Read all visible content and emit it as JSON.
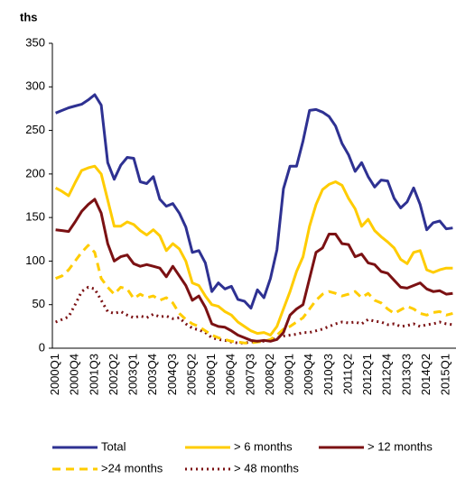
{
  "chart_data": {
    "type": "line",
    "unit_label": "ths",
    "categories": [
      "2000Q1",
      null,
      null,
      "2000Q4",
      null,
      null,
      "2001Q3",
      null,
      null,
      "2002Q2",
      null,
      null,
      "2003Q1",
      null,
      null,
      "2003Q4",
      null,
      null,
      "2004Q3",
      null,
      null,
      "2005Q2",
      null,
      null,
      "2006Q1",
      null,
      null,
      "2006Q4",
      null,
      null,
      "2007Q3",
      null,
      null,
      "2008Q2",
      null,
      null,
      "2009Q1",
      null,
      null,
      "2009Q4",
      null,
      null,
      "2010Q3",
      null,
      null,
      "2011Q2",
      null,
      null,
      "2012Q1",
      null,
      null,
      "2012Q4",
      null,
      null,
      "2013Q3",
      null,
      null,
      "2014Q2",
      null,
      null,
      "2015Q1",
      null
    ],
    "ylim": [
      0,
      350
    ],
    "yticks": [
      0,
      50,
      100,
      150,
      200,
      250,
      300,
      350
    ],
    "series": [
      {
        "name": "Total",
        "color": "#2e3192",
        "style": "solid",
        "values": [
          270,
          273,
          276,
          278,
          280,
          285,
          291,
          279,
          213,
          194,
          210,
          219,
          218,
          191,
          189,
          197,
          171,
          163,
          166,
          155,
          139,
          110,
          112,
          98,
          65,
          75,
          68,
          71,
          56,
          54,
          46,
          67,
          58,
          80,
          113,
          183,
          209,
          209,
          238,
          273,
          274,
          271,
          266,
          255,
          235,
          222,
          203,
          213,
          197,
          185,
          193,
          192,
          172,
          161,
          168,
          184,
          165,
          136,
          144,
          146,
          137,
          138
        ]
      },
      {
        "name": "> 6 months",
        "color": "#ffcc00",
        "style": "solid",
        "values": [
          184,
          180,
          175,
          190,
          204,
          207,
          209,
          200,
          170,
          140,
          140,
          145,
          142,
          135,
          130,
          136,
          129,
          112,
          120,
          114,
          100,
          75,
          72,
          60,
          50,
          48,
          42,
          38,
          30,
          25,
          20,
          17,
          18,
          15,
          25,
          45,
          65,
          88,
          105,
          140,
          165,
          182,
          188,
          191,
          187,
          172,
          160,
          140,
          148,
          135,
          128,
          122,
          115,
          102,
          97,
          110,
          112,
          90,
          87,
          90,
          92,
          92
        ]
      },
      {
        "name": "> 12 months",
        "color": "#7b1113",
        "style": "solid",
        "values": [
          136,
          135,
          134,
          145,
          157,
          165,
          171,
          155,
          120,
          100,
          105,
          107,
          97,
          94,
          96,
          94,
          92,
          82,
          94,
          83,
          72,
          55,
          60,
          47,
          28,
          25,
          24,
          20,
          15,
          12,
          9,
          8,
          9,
          8,
          10,
          18,
          38,
          45,
          50,
          80,
          110,
          115,
          131,
          131,
          120,
          119,
          105,
          108,
          98,
          96,
          88,
          86,
          78,
          70,
          69,
          72,
          75,
          68,
          65,
          66,
          62,
          63
        ]
      },
      {
        "name": ">24 months",
        "color": "#ffcc00",
        "style": "dashed",
        "values": [
          80,
          83,
          90,
          100,
          110,
          118,
          110,
          80,
          70,
          62,
          70,
          68,
          57,
          62,
          58,
          60,
          55,
          58,
          52,
          40,
          33,
          28,
          25,
          20,
          15,
          12,
          10,
          8,
          7,
          6,
          6,
          7,
          8,
          10,
          15,
          22,
          25,
          30,
          35,
          45,
          55,
          62,
          65,
          63,
          60,
          62,
          65,
          58,
          63,
          55,
          52,
          45,
          40,
          44,
          48,
          45,
          40,
          38,
          41,
          42,
          38,
          40
        ]
      },
      {
        "name": "> 48 months",
        "color": "#7b1113",
        "style": "dotted",
        "values": [
          30,
          33,
          36,
          50,
          65,
          70,
          68,
          55,
          42,
          40,
          42,
          38,
          35,
          37,
          35,
          39,
          36,
          37,
          34,
          35,
          28,
          23,
          21,
          18,
          12,
          10,
          9,
          7,
          6,
          6,
          7,
          8,
          8,
          9,
          12,
          14,
          15,
          16,
          18,
          18,
          20,
          22,
          25,
          28,
          30,
          29,
          30,
          28,
          33,
          31,
          30,
          27,
          28,
          25,
          26,
          28,
          25,
          27,
          28,
          30,
          28,
          27
        ]
      }
    ]
  }
}
